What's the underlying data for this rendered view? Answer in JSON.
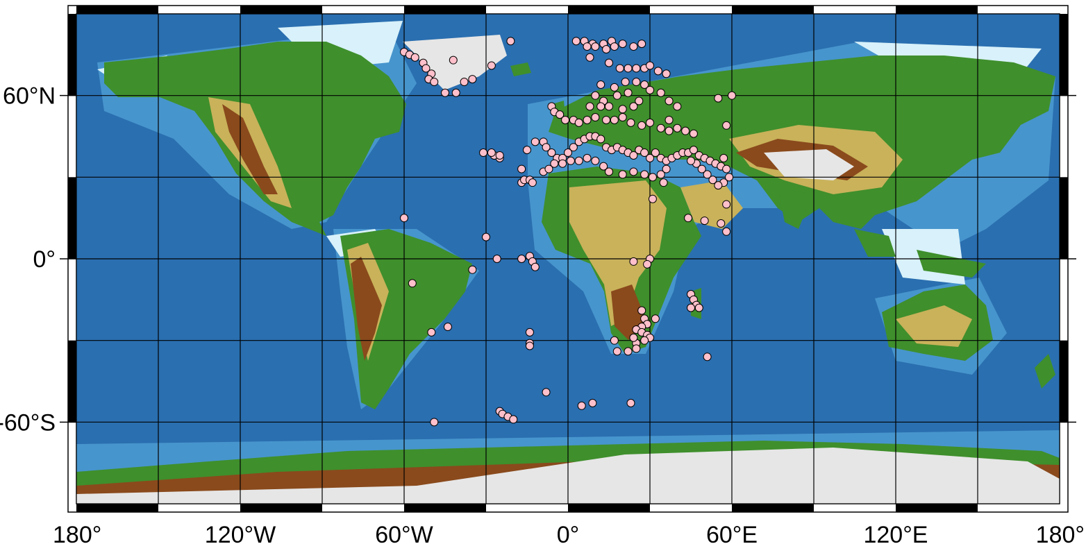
{
  "map": {
    "projection": "equirectangular",
    "extent": {
      "lon": [
        -180,
        180
      ],
      "lat": [
        -90,
        90
      ]
    },
    "grid_interval_deg": 30,
    "frame_style": "fancy black-white",
    "point_style": {
      "fill": "#ffc0cb",
      "stroke": "#000000",
      "shape": "circle"
    },
    "colors": {
      "deep_ocean": "#1c4c82",
      "ocean": "#2a6fb0",
      "shelf": "#5fb4e6",
      "shallow": "#d8f1fa",
      "lowland": "#3f8f2c",
      "upland": "#c9b25a",
      "mountain": "#8a4a1c",
      "high": "#6b5a56",
      "ice": "#e6e6e6"
    },
    "lon_labels": [
      {
        "lon": -180,
        "text": "180°"
      },
      {
        "lon": -120,
        "text": "120°W"
      },
      {
        "lon": -60,
        "text": "60°W"
      },
      {
        "lon": 0,
        "text": "0°"
      },
      {
        "lon": 60,
        "text": "60°E"
      },
      {
        "lon": 120,
        "text": "120°E"
      },
      {
        "lon": 180,
        "text": "180°"
      }
    ],
    "lat_labels": [
      {
        "lat": 60,
        "text": "60°N"
      },
      {
        "lat": 0,
        "text": "0°"
      },
      {
        "lat": -60,
        "text": "-60°S"
      }
    ],
    "points": [
      [
        -60,
        76
      ],
      [
        -58,
        75
      ],
      [
        -56,
        74
      ],
      [
        -53,
        72
      ],
      [
        -52,
        70
      ],
      [
        -50,
        68
      ],
      [
        -51,
        66
      ],
      [
        -49,
        65
      ],
      [
        -45,
        61
      ],
      [
        -41,
        61
      ],
      [
        -38,
        65
      ],
      [
        -35,
        66
      ],
      [
        -21,
        80
      ],
      [
        -28,
        71
      ],
      [
        -42,
        73
      ],
      [
        3,
        80
      ],
      [
        6,
        80
      ],
      [
        9,
        79
      ],
      [
        13,
        79
      ],
      [
        16,
        80
      ],
      [
        20,
        79
      ],
      [
        24,
        78
      ],
      [
        27,
        79
      ],
      [
        14,
        77
      ],
      [
        17,
        78
      ],
      [
        10,
        78
      ],
      [
        7,
        78
      ],
      [
        8,
        74
      ],
      [
        15,
        72
      ],
      [
        19,
        70
      ],
      [
        22,
        70
      ],
      [
        25,
        70
      ],
      [
        28,
        70
      ],
      [
        30,
        71
      ],
      [
        33,
        69
      ],
      [
        36,
        68
      ],
      [
        25,
        65
      ],
      [
        21,
        65
      ],
      [
        17,
        63
      ],
      [
        12,
        64
      ],
      [
        28,
        64
      ],
      [
        30,
        62
      ],
      [
        34,
        61
      ],
      [
        10,
        60
      ],
      [
        13,
        58
      ],
      [
        18,
        60
      ],
      [
        22,
        61
      ],
      [
        26,
        58
      ],
      [
        24,
        56
      ],
      [
        20,
        55
      ],
      [
        15,
        56
      ],
      [
        12,
        56
      ],
      [
        8,
        56
      ],
      [
        37,
        58
      ],
      [
        40,
        56
      ],
      [
        55,
        59
      ],
      [
        -6,
        56
      ],
      [
        -5,
        54
      ],
      [
        -3,
        53
      ],
      [
        -1,
        51
      ],
      [
        2,
        51
      ],
      [
        4,
        50
      ],
      [
        7,
        51
      ],
      [
        10,
        52
      ],
      [
        14,
        51
      ],
      [
        17,
        51
      ],
      [
        20,
        52
      ],
      [
        23,
        50
      ],
      [
        27,
        49
      ],
      [
        30,
        50
      ],
      [
        34,
        48
      ],
      [
        37,
        47
      ],
      [
        40,
        48
      ],
      [
        43,
        47
      ],
      [
        46,
        46
      ],
      [
        -9,
        43
      ],
      [
        -8,
        41
      ],
      [
        -6,
        39
      ],
      [
        -4,
        37
      ],
      [
        -2,
        37
      ],
      [
        0,
        39
      ],
      [
        2,
        41
      ],
      [
        4,
        43
      ],
      [
        6,
        44
      ],
      [
        8,
        45
      ],
      [
        10,
        45
      ],
      [
        12,
        44
      ],
      [
        14,
        41
      ],
      [
        16,
        40
      ],
      [
        18,
        41
      ],
      [
        20,
        40
      ],
      [
        22,
        39
      ],
      [
        24,
        38
      ],
      [
        26,
        40
      ],
      [
        28,
        39
      ],
      [
        30,
        37
      ],
      [
        32,
        39
      ],
      [
        34,
        37
      ],
      [
        36,
        36
      ],
      [
        38,
        37
      ],
      [
        40,
        38
      ],
      [
        42,
        39
      ],
      [
        44,
        39
      ],
      [
        46,
        40
      ],
      [
        48,
        38
      ],
      [
        50,
        37
      ],
      [
        52,
        36
      ],
      [
        54,
        35
      ],
      [
        56,
        34
      ],
      [
        58,
        33
      ],
      [
        59,
        30
      ],
      [
        57,
        28
      ],
      [
        55,
        27
      ],
      [
        53,
        29
      ],
      [
        51,
        31
      ],
      [
        49,
        33
      ],
      [
        47,
        35
      ],
      [
        45,
        36
      ],
      [
        -9,
        32
      ],
      [
        -7,
        33
      ],
      [
        -5,
        35
      ],
      [
        -2,
        35
      ],
      [
        1,
        36
      ],
      [
        4,
        36
      ],
      [
        7,
        37
      ],
      [
        10,
        36
      ],
      [
        13,
        34
      ],
      [
        15,
        32
      ],
      [
        20,
        31
      ],
      [
        24,
        32
      ],
      [
        28,
        31
      ],
      [
        31,
        30
      ],
      [
        34,
        31
      ],
      [
        36,
        33
      ],
      [
        -17,
        28
      ],
      [
        -16,
        29
      ],
      [
        -14,
        29
      ],
      [
        -13,
        28
      ],
      [
        -25,
        37
      ],
      [
        -27,
        38
      ],
      [
        -28,
        39
      ],
      [
        -31,
        39
      ],
      [
        -25,
        38
      ],
      [
        -17,
        33
      ],
      [
        -15,
        40
      ],
      [
        -12,
        43
      ],
      [
        -30,
        8
      ],
      [
        -26,
        0
      ],
      [
        -17,
        0
      ],
      [
        -14,
        1
      ],
      [
        -13,
        -1
      ],
      [
        -12,
        -3
      ],
      [
        -60,
        15
      ],
      [
        -57,
        -9
      ],
      [
        -35,
        -4
      ],
      [
        -44,
        -25
      ],
      [
        -50,
        -27
      ],
      [
        -14,
        -27
      ],
      [
        -14,
        -31
      ],
      [
        -14,
        -32
      ],
      [
        -8,
        -49
      ],
      [
        5,
        -54
      ],
      [
        9,
        -53
      ],
      [
        23,
        -53
      ],
      [
        -25,
        -56
      ],
      [
        -24,
        -57
      ],
      [
        -22,
        -58
      ],
      [
        -20,
        -59
      ],
      [
        -49,
        -60
      ],
      [
        30,
        0
      ],
      [
        29,
        -2
      ],
      [
        24,
        -1
      ],
      [
        32,
        -22
      ],
      [
        27,
        -19
      ],
      [
        28,
        -22
      ],
      [
        29,
        -24
      ],
      [
        27,
        -25
      ],
      [
        25,
        -26
      ],
      [
        27,
        -27
      ],
      [
        29,
        -28
      ],
      [
        30,
        -29
      ],
      [
        28,
        -30
      ],
      [
        25,
        -31
      ],
      [
        24,
        -29
      ],
      [
        17,
        -30
      ],
      [
        18,
        -34
      ],
      [
        22,
        -34
      ],
      [
        25,
        -33
      ],
      [
        51,
        -36
      ],
      [
        45,
        -13
      ],
      [
        46,
        -15
      ],
      [
        47,
        -17
      ],
      [
        45,
        -18
      ],
      [
        48,
        -18
      ],
      [
        44,
        15
      ],
      [
        50,
        14
      ],
      [
        56,
        13
      ],
      [
        58,
        10
      ],
      [
        31,
        22
      ],
      [
        35,
        28
      ],
      [
        58,
        20
      ],
      [
        57,
        37
      ],
      [
        58,
        49
      ],
      [
        60,
        60
      ],
      [
        37,
        51
      ]
    ]
  }
}
